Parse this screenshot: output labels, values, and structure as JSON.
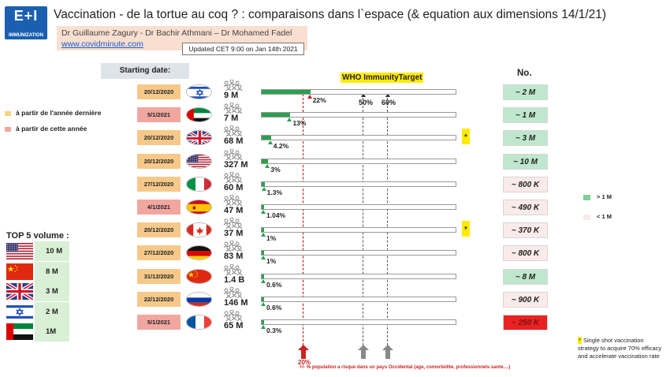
{
  "header": {
    "logo_big": "E+I",
    "logo_small": "IMMUNIZATION",
    "title": "Vaccination - de la tortue au coq ? : comparaisons dans l`espace (& equation aux dimensions 14/1/21)",
    "authors": "Dr Guillaume Zagury - Dr Bachir Athmani – Dr Mohamed Fadel",
    "website": "www.covidminute.com",
    "updated": "Updated  CET 9:00 on  Jan 14th  2021"
  },
  "labels": {
    "starting_date": "Starting date:",
    "no": "No.",
    "who_target": "WHO ImmunityTarget",
    "mark50": "50%",
    "mark60": "60%",
    "mark20": "20%",
    "legend_last_year": "à partir de l'année dernière",
    "legend_this_year": "à partir de cette année",
    "legend_gt1m": "> 1 M",
    "legend_lt1m": "< 1 M",
    "single_shot_note": "Single shot vaccination strategy to acquire 70% efficacy  and accelerate vaccination rate",
    "footer": "+/- % population a risque dans un pays Occidental (age, comorbidite, professionnels sante....)",
    "star": "*",
    "top5_title": "TOP 5 volume :"
  },
  "colors": {
    "green": "#2aa04e",
    "orange_date": "#f6c98a",
    "pink_date": "#f2a6a0",
    "who_yellow": "#ffeb00"
  },
  "top5": [
    {
      "flag": "us",
      "value": "10 M"
    },
    {
      "flag": "cn",
      "value": "8 M"
    },
    {
      "flag": "gb",
      "value": "3 M"
    },
    {
      "flag": "il",
      "value": "2 M"
    },
    {
      "flag": "ae",
      "value": "1M"
    }
  ],
  "rows": [
    {
      "date": "20/12/2020",
      "date_type": "last_year",
      "flag": "il",
      "population": "9 M",
      "pct_label": "22%",
      "vaccinated": "~ 2 M",
      "box": "green",
      "star": false
    },
    {
      "date": "5/1/2021",
      "date_type": "this_year",
      "flag": "ae",
      "population": "7 M",
      "pct_label": "13%",
      "vaccinated": "~ 1 M",
      "box": "green",
      "star": false
    },
    {
      "date": "20/12/2020",
      "date_type": "last_year",
      "flag": "gb",
      "population": "68 M",
      "pct_label": "4.2%",
      "vaccinated": "~ 3 M",
      "box": "green",
      "star": true
    },
    {
      "date": "20/12/2020",
      "date_type": "last_year",
      "flag": "us",
      "population": "327 M",
      "pct_label": "3%",
      "vaccinated": "~ 10 M",
      "box": "green",
      "star": false
    },
    {
      "date": "27/12/2020",
      "date_type": "last_year",
      "flag": "it",
      "population": "60 M",
      "pct_label": "1.3%",
      "vaccinated": "~ 800 K",
      "box": "pink",
      "star": false
    },
    {
      "date": "4/1/2021",
      "date_type": "this_year",
      "flag": "es",
      "population": "47 M",
      "pct_label": "1.04%",
      "vaccinated": "~ 490 K",
      "box": "pink",
      "star": false
    },
    {
      "date": "20/12/2020",
      "date_type": "last_year",
      "flag": "ca",
      "population": "37 M",
      "pct_label": "1%",
      "vaccinated": "~ 370 K",
      "box": "pink",
      "star": true
    },
    {
      "date": "27/12/2020",
      "date_type": "last_year",
      "flag": "de",
      "population": "83 M",
      "pct_label": "1%",
      "vaccinated": "~ 800 K",
      "box": "pink",
      "star": false
    },
    {
      "date": "31/12/2020",
      "date_type": "last_year",
      "flag": "cn",
      "population": "1.4 B",
      "pct_label": "0.6%",
      "vaccinated": "~ 8 M",
      "box": "green",
      "star": false
    },
    {
      "date": "22/12/2020",
      "date_type": "last_year",
      "flag": "ru",
      "population": "146 M",
      "pct_label": "0.6%",
      "vaccinated": "~ 900 K",
      "box": "pink",
      "star": false
    },
    {
      "date": "5/1/2021",
      "date_type": "this_year",
      "flag": "fr",
      "population": "65 M",
      "pct_label": "0.3%",
      "vaccinated": "~ 250 K",
      "box": "red",
      "star": false
    }
  ],
  "chart_data": {
    "type": "bar",
    "categories": [
      "9 M",
      "7 M",
      "68 M",
      "327 M",
      "60 M",
      "47 M",
      "37 M",
      "83 M",
      "1.4 B",
      "146 M",
      "65 M"
    ],
    "values": [
      22,
      13,
      4.2,
      3,
      1.3,
      1.04,
      1,
      1,
      0.6,
      0.6,
      0.3
    ],
    "ylim": [
      0,
      100
    ],
    "reference_lines": [
      20,
      50,
      60
    ],
    "title": "WHO ImmunityTarget"
  }
}
